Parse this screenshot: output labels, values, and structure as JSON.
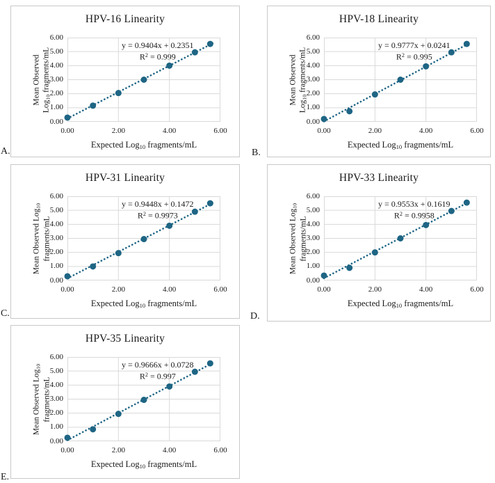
{
  "style": {
    "accent_color": "#1e6584",
    "grid_color": "#d9d9d9",
    "plot_border_color": "#d9d9d9",
    "panel_border_color": "#c8c8c8",
    "text_color": "#1a1a1a"
  },
  "chart_data": [
    {
      "type": "scatter",
      "letter": "A.",
      "title": "HPV-16 Linearity",
      "equation": "y = 0.9404x + 0.2351",
      "r_squared": "0.999",
      "r2_segments": [
        "R",
        {
          "sup": "2"
        },
        " = 0.999"
      ],
      "xlabel": "Expected Log10 fragments/mL",
      "xlabel_segments": [
        "Expected Log",
        {
          "sub": "10"
        },
        " fragments/mL"
      ],
      "ylabel": "Mean Observed Log10 fragments/mL",
      "ylabel_lines": [
        [
          "Mean Observed"
        ],
        [
          "Log",
          {
            "sub": "10"
          },
          " fragments/mL"
        ]
      ],
      "x": [
        0,
        1,
        2,
        3,
        4,
        5,
        5.6
      ],
      "y": [
        0.3,
        1.15,
        2.05,
        3.0,
        4.0,
        4.95,
        5.55
      ],
      "trend": {
        "slope": 0.9404,
        "intercept": 0.2351,
        "x_start": 0,
        "x_end": 5.7,
        "style": "dotted"
      },
      "xlim": [
        0,
        6
      ],
      "ylim": [
        0,
        6
      ],
      "xticks": [
        "0.00",
        "2.00",
        "4.00",
        "6.00"
      ],
      "yticks": [
        "0.00",
        "1.00",
        "2.00",
        "3.00",
        "4.00",
        "5.00",
        "6.00"
      ],
      "grid": true,
      "legend": false
    },
    {
      "type": "scatter",
      "letter": "B.",
      "title": "HPV-18 Linearity",
      "equation": "y = 0.9777x + 0.0241",
      "r_squared": "0.995",
      "r2_segments": [
        "R",
        {
          "sup": "2"
        },
        " = 0.995"
      ],
      "xlabel": "Expected Log10 fragments/mL",
      "xlabel_segments": [
        "Expected Log",
        {
          "sub": "10"
        },
        " fragments/mL"
      ],
      "ylabel": "Mean Observed Log10 fragments/mL",
      "ylabel_lines": [
        [
          "Mean Observed"
        ],
        [
          "Log",
          {
            "sub": "10"
          },
          " fragments/mL"
        ]
      ],
      "x": [
        0,
        1,
        2,
        3,
        4,
        5,
        5.6
      ],
      "y": [
        0.2,
        0.75,
        1.95,
        3.0,
        3.95,
        4.95,
        5.55
      ],
      "trend": {
        "slope": 0.9777,
        "intercept": 0.0241,
        "x_start": 0,
        "x_end": 5.7,
        "style": "dotted"
      },
      "xlim": [
        0,
        6
      ],
      "ylim": [
        0,
        6
      ],
      "xticks": [
        "0.00",
        "2.00",
        "4.00",
        "6.00"
      ],
      "yticks": [
        "0.00",
        "1.00",
        "2.00",
        "3.00",
        "4.00",
        "5.00",
        "6.00"
      ],
      "grid": true,
      "legend": false
    },
    {
      "type": "scatter",
      "letter": "C.",
      "title": "HPV-31 Linearity",
      "equation": "y = 0.9448x + 0.1472",
      "r_squared": "0.9973",
      "r2_segments": [
        "R",
        {
          "sup": "2"
        },
        " = 0.9973"
      ],
      "xlabel": "Expected Log10 fragments/mL",
      "xlabel_segments": [
        "Expected Log",
        {
          "sub": "10"
        },
        " fragments/mL"
      ],
      "ylabel": "Mean Observed Log10 fragments/mL",
      "ylabel_lines": [
        [
          "Mean Observed Log",
          {
            "sub": "10"
          }
        ],
        [
          "fragments/mL"
        ]
      ],
      "x": [
        0,
        1,
        2,
        3,
        4,
        5,
        5.6
      ],
      "y": [
        0.3,
        1.0,
        1.95,
        2.95,
        3.9,
        4.9,
        5.5
      ],
      "trend": {
        "slope": 0.9448,
        "intercept": 0.1472,
        "x_start": 0,
        "x_end": 5.7,
        "style": "dotted"
      },
      "xlim": [
        0,
        6
      ],
      "ylim": [
        0,
        6
      ],
      "xticks": [
        "0.00",
        "2.00",
        "4.00",
        "6.00"
      ],
      "yticks": [
        "0.00",
        "1.00",
        "2.00",
        "3.00",
        "4.00",
        "5.00",
        "6.00"
      ],
      "grid": true,
      "legend": false
    },
    {
      "type": "scatter",
      "letter": "D.",
      "title": "HPV-33 Linearity",
      "equation": "y = 0.9553x + 0.1619",
      "r_squared": "0.9958",
      "r2_segments": [
        "R",
        {
          "sup": "2"
        },
        " = 0.9958"
      ],
      "xlabel": "Expected Log10 fragments/mL",
      "xlabel_segments": [
        "Expected Log",
        {
          "sub": "10"
        },
        " fragments/mL"
      ],
      "ylabel": "Mean Observed Log10 fragments/mL",
      "ylabel_lines": [
        [
          "Mean Observed Log",
          {
            "sub": "10"
          }
        ],
        [
          "fragments/mL"
        ]
      ],
      "x": [
        0,
        1,
        2,
        3,
        4,
        5,
        5.6
      ],
      "y": [
        0.35,
        0.9,
        2.0,
        3.0,
        3.95,
        4.95,
        5.55
      ],
      "trend": {
        "slope": 0.9553,
        "intercept": 0.1619,
        "x_start": 0,
        "x_end": 5.7,
        "style": "dotted"
      },
      "xlim": [
        0,
        6
      ],
      "ylim": [
        0,
        6
      ],
      "xticks": [
        "0.00",
        "2.00",
        "4.00",
        "6.00"
      ],
      "yticks": [
        "0.00",
        "1.00",
        "2.00",
        "3.00",
        "4.00",
        "5.00",
        "6.00"
      ],
      "grid": true,
      "legend": false
    },
    {
      "type": "scatter",
      "letter": "E.",
      "title": "HPV-35 Linearity",
      "equation": "y = 0.9666x + 0.0728",
      "r_squared": "0.997",
      "r2_segments": [
        "R",
        {
          "sup": "2"
        },
        " = 0.997"
      ],
      "xlabel": "Expected Log10 fragments/mL",
      "xlabel_segments": [
        "Expected Log",
        {
          "sub": "10"
        },
        " fragments/mL"
      ],
      "ylabel": "Mean Observed Log10 fragments/mL",
      "ylabel_lines": [
        [
          "Mean Observed Log",
          {
            "sub": "10"
          }
        ],
        [
          "fragments/mL"
        ]
      ],
      "x": [
        0,
        1,
        2,
        3,
        4,
        5,
        5.6
      ],
      "y": [
        0.25,
        0.85,
        1.95,
        2.95,
        3.9,
        4.95,
        5.55
      ],
      "trend": {
        "slope": 0.9666,
        "intercept": 0.0728,
        "x_start": 0,
        "x_end": 5.7,
        "style": "dotted"
      },
      "xlim": [
        0,
        6
      ],
      "ylim": [
        0,
        6
      ],
      "xticks": [
        "0.00",
        "2.00",
        "4.00",
        "6.00"
      ],
      "yticks": [
        "0.00",
        "1.00",
        "2.00",
        "3.00",
        "4.00",
        "5.00",
        "6.00"
      ],
      "grid": true,
      "legend": false
    }
  ]
}
